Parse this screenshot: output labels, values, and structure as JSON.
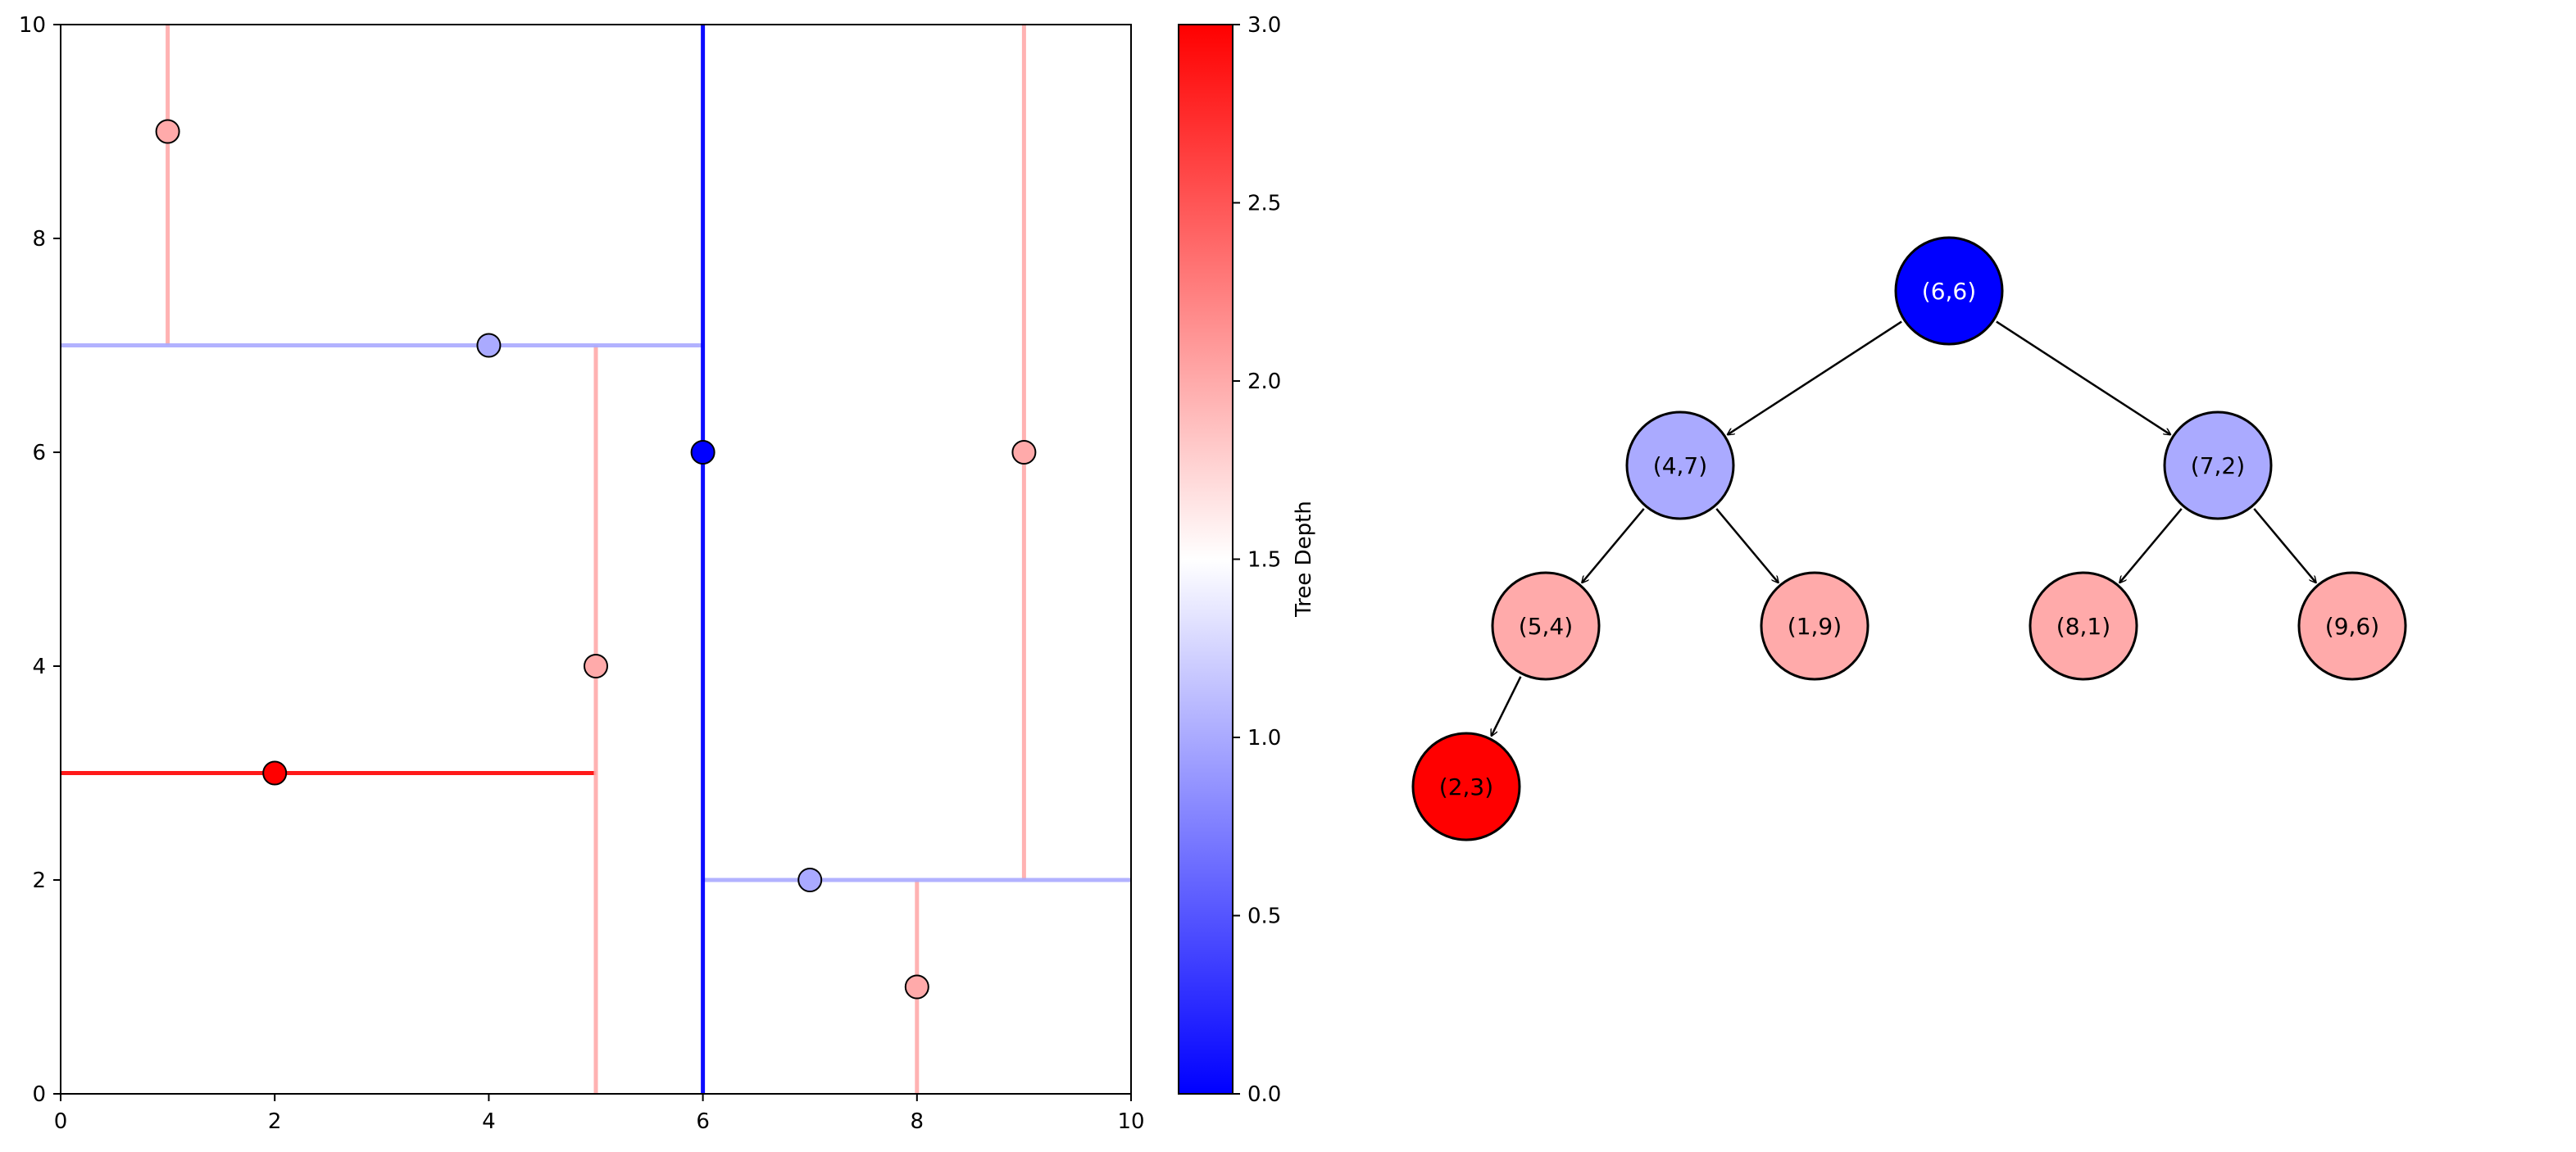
{
  "chart_data": [
    {
      "type": "scatter",
      "title": "",
      "xlabel": "",
      "ylabel": "",
      "xlim": [
        0,
        10
      ],
      "ylim": [
        0,
        10
      ],
      "xticks": [
        0,
        2,
        4,
        6,
        8,
        10
      ],
      "yticks": [
        0,
        2,
        4,
        6,
        8,
        10
      ],
      "grid": false,
      "points": [
        {
          "x": 6,
          "y": 6,
          "depth": 0
        },
        {
          "x": 4,
          "y": 7,
          "depth": 1
        },
        {
          "x": 7,
          "y": 2,
          "depth": 1
        },
        {
          "x": 5,
          "y": 4,
          "depth": 2
        },
        {
          "x": 1,
          "y": 9,
          "depth": 2
        },
        {
          "x": 8,
          "y": 1,
          "depth": 2
        },
        {
          "x": 9,
          "y": 6,
          "depth": 2
        },
        {
          "x": 2,
          "y": 3,
          "depth": 3
        }
      ],
      "splits": [
        {
          "axis": "x",
          "at": 6,
          "from": 0,
          "to": 10,
          "depth": 0
        },
        {
          "axis": "y",
          "at": 7,
          "from": 0,
          "to": 6,
          "depth": 1
        },
        {
          "axis": "y",
          "at": 2,
          "from": 6,
          "to": 10,
          "depth": 1
        },
        {
          "axis": "x",
          "at": 5,
          "from": 0,
          "to": 7,
          "depth": 2
        },
        {
          "axis": "x",
          "at": 1,
          "from": 7,
          "to": 10,
          "depth": 2
        },
        {
          "axis": "x",
          "at": 8,
          "from": 0,
          "to": 2,
          "depth": 2
        },
        {
          "axis": "x",
          "at": 9,
          "from": 2,
          "to": 10,
          "depth": 2
        },
        {
          "axis": "y",
          "at": 3,
          "from": 0,
          "to": 5,
          "depth": 3
        }
      ],
      "colorbar": {
        "label": "Tree Depth",
        "range": [
          0,
          3
        ],
        "ticks": [
          "0.0",
          "0.5",
          "1.0",
          "1.5",
          "2.0",
          "2.5",
          "3.0"
        ],
        "colormap": "bwr",
        "colors": {
          "low": "#0000ff",
          "mid": "#ffffff",
          "high": "#ff0000"
        }
      }
    },
    {
      "type": "tree",
      "nodes": [
        {
          "label": "(6,6)",
          "depth": 0,
          "fill": "#0000ff",
          "text_color": "#ffffff"
        },
        {
          "label": "(4,7)",
          "depth": 1,
          "fill": "#aaaaff",
          "text_color": "#000000"
        },
        {
          "label": "(7,2)",
          "depth": 1,
          "fill": "#aaaaff",
          "text_color": "#000000"
        },
        {
          "label": "(5,4)",
          "depth": 2,
          "fill": "#ffaaaa",
          "text_color": "#000000"
        },
        {
          "label": "(1,9)",
          "depth": 2,
          "fill": "#ffaaaa",
          "text_color": "#000000"
        },
        {
          "label": "(8,1)",
          "depth": 2,
          "fill": "#ffaaaa",
          "text_color": "#000000"
        },
        {
          "label": "(9,6)",
          "depth": 2,
          "fill": "#ffaaaa",
          "text_color": "#000000"
        },
        {
          "label": "(2,3)",
          "depth": 3,
          "fill": "#ff0000",
          "text_color": "#000000"
        }
      ],
      "edges": [
        [
          0,
          1
        ],
        [
          0,
          2
        ],
        [
          1,
          3
        ],
        [
          1,
          4
        ],
        [
          2,
          5
        ],
        [
          2,
          6
        ],
        [
          3,
          7
        ]
      ]
    }
  ]
}
